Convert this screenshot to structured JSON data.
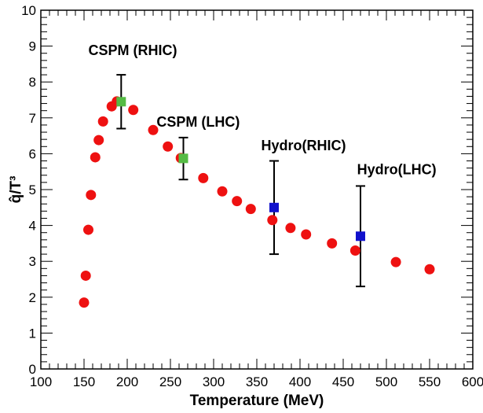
{
  "chart_data": {
    "type": "scatter",
    "title": "",
    "xlabel": "Temperature (MeV)",
    "ylabel": "q̂/T³",
    "xlim": [
      100,
      600
    ],
    "ylim": [
      0,
      10
    ],
    "xticks": [
      100,
      150,
      200,
      250,
      300,
      350,
      400,
      450,
      500,
      550,
      600
    ],
    "yticks": [
      0,
      1,
      2,
      3,
      4,
      5,
      6,
      7,
      8,
      9,
      10
    ],
    "grid": false,
    "series": [
      {
        "marker": "circle",
        "color": "#ee1111",
        "points": [
          {
            "x": 150,
            "y": 1.85
          },
          {
            "x": 152,
            "y": 2.6
          },
          {
            "x": 155,
            "y": 3.88
          },
          {
            "x": 158,
            "y": 4.85
          },
          {
            "x": 163,
            "y": 5.9
          },
          {
            "x": 167,
            "y": 6.38
          },
          {
            "x": 172,
            "y": 6.9
          },
          {
            "x": 182,
            "y": 7.32
          },
          {
            "x": 188,
            "y": 7.46
          },
          {
            "x": 207,
            "y": 7.22
          },
          {
            "x": 230,
            "y": 6.66
          },
          {
            "x": 247,
            "y": 6.2
          },
          {
            "x": 262,
            "y": 5.88
          },
          {
            "x": 288,
            "y": 5.32
          },
          {
            "x": 310,
            "y": 4.95
          },
          {
            "x": 327,
            "y": 4.68
          },
          {
            "x": 343,
            "y": 4.46
          },
          {
            "x": 368,
            "y": 4.15
          },
          {
            "x": 389,
            "y": 3.93
          },
          {
            "x": 407,
            "y": 3.75
          },
          {
            "x": 437,
            "y": 3.5
          },
          {
            "x": 464,
            "y": 3.3
          },
          {
            "x": 511,
            "y": 2.98
          },
          {
            "x": 550,
            "y": 2.78
          }
        ]
      },
      {
        "marker": "square",
        "color": "#55bb44",
        "points": [
          {
            "x": 193,
            "y": 7.45,
            "yerr": [
              6.7,
              8.2
            ]
          },
          {
            "x": 265,
            "y": 5.87,
            "yerr": [
              5.28,
              6.45
            ]
          }
        ]
      },
      {
        "marker": "square",
        "color": "#1111cc",
        "points": [
          {
            "x": 370,
            "y": 4.5,
            "yerr": [
              3.2,
              5.8
            ]
          },
          {
            "x": 470,
            "y": 3.7,
            "yerr": [
              2.3,
              5.1
            ]
          }
        ]
      }
    ],
    "annotations": [
      {
        "text": "CSPM (RHIC)",
        "x": 155,
        "y": 8.75
      },
      {
        "text": "CSPM (LHC)",
        "x": 234,
        "y": 6.75
      },
      {
        "text": "Hydro(RHIC)",
        "x": 355,
        "y": 6.1
      },
      {
        "text": "Hydro(LHC)",
        "x": 466,
        "y": 5.43
      }
    ]
  }
}
